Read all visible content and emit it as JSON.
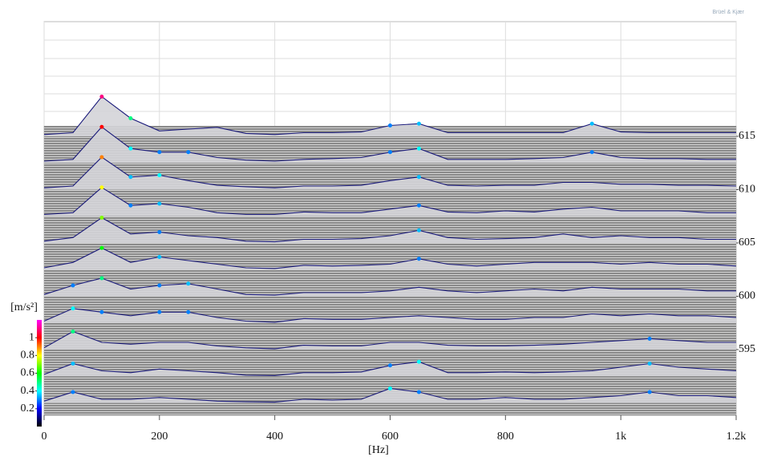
{
  "brand": "Brüel & Kjær",
  "chart_data": {
    "type": "waterfall",
    "x_label": "[Hz]",
    "x": [
      0,
      50,
      100,
      150,
      200,
      250,
      300,
      350,
      400,
      450,
      500,
      550,
      600,
      650,
      700,
      750,
      800,
      850,
      900,
      950,
      1000,
      1050,
      1100,
      1150,
      1200
    ],
    "xlim": [
      0,
      1200
    ],
    "xticks": [
      0,
      200,
      400,
      600,
      800,
      {
        "value": 1000,
        "label": "1k"
      },
      {
        "value": 1200,
        "label": "1.2k"
      }
    ],
    "zlim": [
      588.5,
      616
    ],
    "zticks": [
      615,
      610,
      605,
      600,
      595
    ],
    "color_label": "[m/s²]",
    "clim": [
      0,
      1.2
    ],
    "cticks": [
      0.2,
      0.4,
      0.6,
      0.8,
      1
    ],
    "colormap": [
      "#000000",
      "#0000ff",
      "#00ffff",
      "#00ff00",
      "#ffff00",
      "#ff0000",
      "#ff00ff"
    ],
    "line_color": "#1a1a7a",
    "grid": true,
    "series": [
      {
        "z": 615,
        "values": [
          0.05,
          0.1,
          1.1,
          0.5,
          0.15,
          0.2,
          0.25,
          0.08,
          0.05,
          0.1,
          0.1,
          0.12,
          0.3,
          0.35,
          0.1,
          0.1,
          0.1,
          0.1,
          0.1,
          0.35,
          0.12,
          0.1,
          0.1,
          0.1,
          0.1
        ]
      },
      {
        "z": 612.5,
        "values": [
          0.05,
          0.1,
          1.0,
          0.4,
          0.3,
          0.3,
          0.15,
          0.08,
          0.05,
          0.1,
          0.12,
          0.15,
          0.3,
          0.4,
          0.1,
          0.1,
          0.1,
          0.12,
          0.15,
          0.3,
          0.15,
          0.12,
          0.12,
          0.1,
          0.1
        ]
      },
      {
        "z": 610,
        "values": [
          0.05,
          0.1,
          0.9,
          0.35,
          0.4,
          0.25,
          0.12,
          0.08,
          0.05,
          0.1,
          0.1,
          0.12,
          0.25,
          0.35,
          0.12,
          0.1,
          0.12,
          0.12,
          0.2,
          0.2,
          0.15,
          0.15,
          0.12,
          0.12,
          0.1
        ]
      },
      {
        "z": 607.5,
        "values": [
          0.05,
          0.1,
          0.8,
          0.3,
          0.35,
          0.25,
          0.1,
          0.05,
          0.05,
          0.12,
          0.1,
          0.1,
          0.2,
          0.3,
          0.12,
          0.1,
          0.15,
          0.12,
          0.2,
          0.25,
          0.15,
          0.15,
          0.15,
          0.1,
          0.1
        ]
      },
      {
        "z": 605,
        "values": [
          0.05,
          0.15,
          0.7,
          0.25,
          0.3,
          0.2,
          0.15,
          0.05,
          0.03,
          0.1,
          0.1,
          0.12,
          0.2,
          0.35,
          0.15,
          0.1,
          0.12,
          0.15,
          0.25,
          0.15,
          0.2,
          0.15,
          0.15,
          0.1,
          0.1
        ]
      },
      {
        "z": 602.5,
        "values": [
          0.05,
          0.2,
          0.6,
          0.2,
          0.35,
          0.25,
          0.15,
          0.05,
          0.03,
          0.12,
          0.1,
          0.12,
          0.15,
          0.3,
          0.15,
          0.1,
          0.15,
          0.2,
          0.2,
          0.2,
          0.15,
          0.2,
          0.15,
          0.15,
          0.1
        ]
      },
      {
        "z": 600,
        "values": [
          0.05,
          0.3,
          0.5,
          0.2,
          0.3,
          0.35,
          0.2,
          0.05,
          0.03,
          0.1,
          0.1,
          0.1,
          0.15,
          0.25,
          0.15,
          0.1,
          0.15,
          0.2,
          0.15,
          0.25,
          0.2,
          0.2,
          0.2,
          0.15,
          0.15
        ]
      },
      {
        "z": 597.5,
        "values": [
          0.05,
          0.4,
          0.3,
          0.2,
          0.3,
          0.3,
          0.15,
          0.05,
          0.02,
          0.12,
          0.1,
          0.1,
          0.15,
          0.2,
          0.15,
          0.1,
          0.1,
          0.15,
          0.15,
          0.25,
          0.2,
          0.25,
          0.2,
          0.2,
          0.15
        ]
      },
      {
        "z": 595,
        "values": [
          0.05,
          0.5,
          0.2,
          0.15,
          0.2,
          0.2,
          0.1,
          0.05,
          0.02,
          0.12,
          0.1,
          0.1,
          0.2,
          0.2,
          0.12,
          0.1,
          0.1,
          0.12,
          0.15,
          0.2,
          0.25,
          0.3,
          0.25,
          0.2,
          0.2
        ]
      },
      {
        "z": 592.5,
        "values": [
          0.05,
          0.35,
          0.15,
          0.1,
          0.2,
          0.15,
          0.1,
          0.03,
          0.02,
          0.1,
          0.1,
          0.12,
          0.3,
          0.4,
          0.1,
          0.1,
          0.12,
          0.1,
          0.12,
          0.15,
          0.25,
          0.35,
          0.25,
          0.2,
          0.15
        ]
      },
      {
        "z": 590,
        "values": [
          0.05,
          0.3,
          0.1,
          0.1,
          0.15,
          0.1,
          0.05,
          0.03,
          0.02,
          0.1,
          0.08,
          0.1,
          0.4,
          0.3,
          0.1,
          0.1,
          0.15,
          0.1,
          0.1,
          0.15,
          0.2,
          0.3,
          0.2,
          0.2,
          0.15
        ]
      }
    ]
  }
}
